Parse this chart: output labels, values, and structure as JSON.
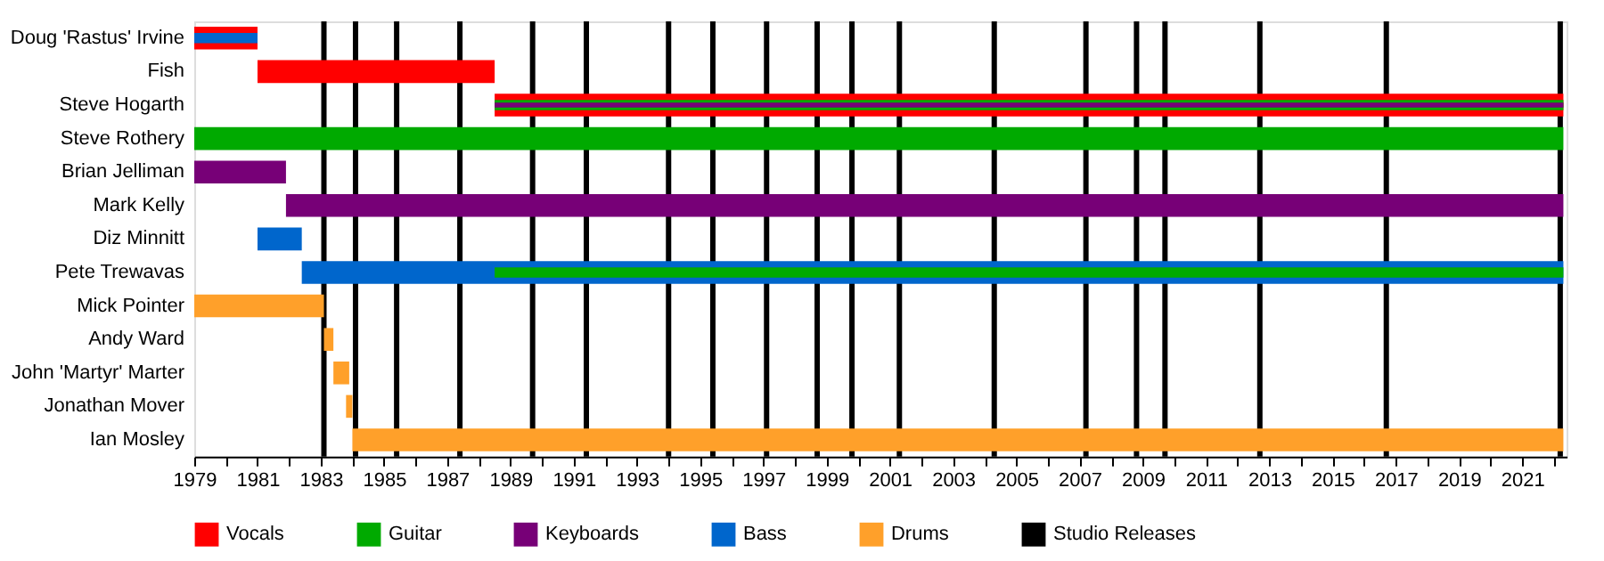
{
  "chart_data": {
    "type": "bar",
    "orientation": "horizontal",
    "categories": [
      "Doug 'Rastus' Irvine",
      "Fish",
      "Steve Hogarth",
      "Steve Rothery",
      "Brian Jelliman",
      "Mark Kelly",
      "Diz Minnitt",
      "Pete Trewavas",
      "Mick Pointer",
      "Andy Ward",
      "John 'Martyr' Marter",
      "Jonathan Mover",
      "Ian Mosley"
    ],
    "series": [
      {
        "name": "Vocals",
        "color": "#ff0000",
        "base": [
          1979.0,
          1981.0,
          1988.5,
          null,
          null,
          null,
          null,
          null,
          null,
          null,
          null,
          null,
          null
        ],
        "values": [
          2.0,
          7.5,
          33.8,
          null,
          null,
          null,
          null,
          null,
          null,
          null,
          null,
          null,
          null
        ]
      },
      {
        "name": "Guitar",
        "color": "#00aa00",
        "base": [
          null,
          null,
          1988.5,
          1979.0,
          null,
          null,
          null,
          1988.5,
          null,
          null,
          null,
          null,
          null
        ],
        "values": [
          null,
          null,
          33.8,
          43.3,
          null,
          null,
          null,
          33.8,
          null,
          null,
          null,
          null,
          null
        ]
      },
      {
        "name": "Keyboards",
        "color": "#770077",
        "base": [
          null,
          null,
          1988.5,
          null,
          1979.0,
          1981.9,
          null,
          null,
          null,
          null,
          null,
          null,
          null
        ],
        "values": [
          null,
          null,
          33.8,
          null,
          2.9,
          40.4,
          null,
          null,
          null,
          null,
          null,
          null,
          null
        ]
      },
      {
        "name": "Bass",
        "color": "#0066cc",
        "base": [
          1979.0,
          null,
          null,
          null,
          null,
          null,
          1981.0,
          1982.4,
          null,
          null,
          null,
          null,
          null
        ],
        "values": [
          2.0,
          null,
          null,
          null,
          null,
          null,
          1.4,
          39.9,
          null,
          null,
          null,
          null,
          null
        ]
      },
      {
        "name": "Drums",
        "color": "#ffa02a",
        "base": [
          null,
          null,
          null,
          null,
          null,
          null,
          null,
          null,
          1979.0,
          1983.1,
          1983.4,
          1983.8,
          1984.0
        ],
        "values": [
          null,
          null,
          null,
          null,
          null,
          null,
          null,
          null,
          4.1,
          0.3,
          0.5,
          0.2,
          38.3
        ]
      }
    ],
    "ref_lines": [
      {
        "axis": "x",
        "value": 1983.1,
        "label": "Studio Releases",
        "color": "#000000"
      },
      {
        "axis": "x",
        "value": 1984.1,
        "color": "#000000"
      },
      {
        "axis": "x",
        "value": 1985.4,
        "color": "#000000"
      },
      {
        "axis": "x",
        "value": 1987.4,
        "color": "#000000"
      },
      {
        "axis": "x",
        "value": 1989.7,
        "color": "#000000"
      },
      {
        "axis": "x",
        "value": 1991.4,
        "color": "#000000"
      },
      {
        "axis": "x",
        "value": 1994.0,
        "color": "#000000"
      },
      {
        "axis": "x",
        "value": 1995.4,
        "color": "#000000"
      },
      {
        "axis": "x",
        "value": 1997.1,
        "color": "#000000"
      },
      {
        "axis": "x",
        "value": 1998.7,
        "color": "#000000"
      },
      {
        "axis": "x",
        "value": 1999.8,
        "color": "#000000"
      },
      {
        "axis": "x",
        "value": 2001.3,
        "color": "#000000"
      },
      {
        "axis": "x",
        "value": 2004.3,
        "color": "#000000"
      },
      {
        "axis": "x",
        "value": 2007.2,
        "color": "#000000"
      },
      {
        "axis": "x",
        "value": 2008.8,
        "color": "#000000"
      },
      {
        "axis": "x",
        "value": 2009.7,
        "color": "#000000"
      },
      {
        "axis": "x",
        "value": 2012.7,
        "color": "#000000"
      },
      {
        "axis": "x",
        "value": 2016.7,
        "color": "#000000"
      },
      {
        "axis": "x",
        "value": 2022.2,
        "color": "#000000"
      }
    ],
    "xlim": [
      1979,
      2022.4
    ],
    "xticks": [
      1979,
      {
        "value": 1980,
        "label": null
      },
      1981,
      {
        "value": 1982,
        "label": null
      },
      1983,
      {
        "value": 1984,
        "label": null
      },
      1985,
      {
        "value": 1986,
        "label": null
      },
      1987,
      {
        "value": 1988,
        "label": null
      },
      1989,
      {
        "value": 1990,
        "label": null
      },
      1991,
      {
        "value": 1992,
        "label": null
      },
      1993,
      {
        "value": 1994,
        "label": null
      },
      1995,
      {
        "value": 1996,
        "label": null
      },
      1997,
      {
        "value": 1998,
        "label": null
      },
      1999,
      {
        "value": 2000,
        "label": null
      },
      2001,
      {
        "value": 2002,
        "label": null
      },
      2003,
      {
        "value": 2004,
        "label": null
      },
      2005,
      {
        "value": 2006,
        "label": null
      },
      2007,
      {
        "value": 2008,
        "label": null
      },
      2009,
      {
        "value": 2010,
        "label": null
      },
      2011,
      {
        "value": 2012,
        "label": null
      },
      2013,
      {
        "value": 2014,
        "label": null
      },
      2015,
      {
        "value": 2016,
        "label": null
      },
      2017,
      {
        "value": 2018,
        "label": null
      },
      2019,
      {
        "value": 2020,
        "label": null
      },
      2021,
      {
        "value": 2022,
        "label": null
      }
    ],
    "grid": false,
    "legend": "bottom"
  }
}
